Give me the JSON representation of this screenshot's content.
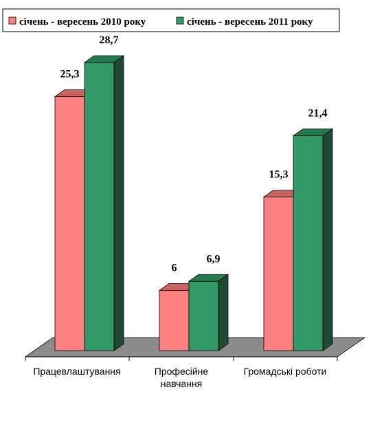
{
  "colors": {
    "series_2010_front": "#ff8080",
    "series_2010_top": "#c86464",
    "series_2010_side": "#b35a5a",
    "series_2011_front": "#339966",
    "series_2011_top": "#267a4f",
    "series_2011_side": "#1f4a33",
    "floor": "#8c8c8c"
  },
  "legend": {
    "items": [
      {
        "label": "січень - вересень 2010 року"
      },
      {
        "label": "січень - вересень 2011 року"
      }
    ]
  },
  "chart_data": {
    "type": "bar",
    "categories": [
      [
        "Працевлаштування"
      ],
      [
        "Професійне",
        "навчання"
      ],
      [
        "Громадські роботи"
      ]
    ],
    "series": [
      {
        "name": "січень - вересень 2010 року",
        "values": [
          25.3,
          6,
          15.3
        ],
        "labels": [
          "25,3",
          "6",
          "15,3"
        ]
      },
      {
        "name": "січень - вересень 2011 року",
        "values": [
          28.7,
          6.9,
          21.4
        ],
        "labels": [
          "28,7",
          "6,9",
          "21,4"
        ]
      }
    ],
    "title": "",
    "xlabel": "",
    "ylabel": "",
    "ylim": [
      0,
      30
    ],
    "grid": false,
    "legend_position": "top-right",
    "style": "3d"
  }
}
